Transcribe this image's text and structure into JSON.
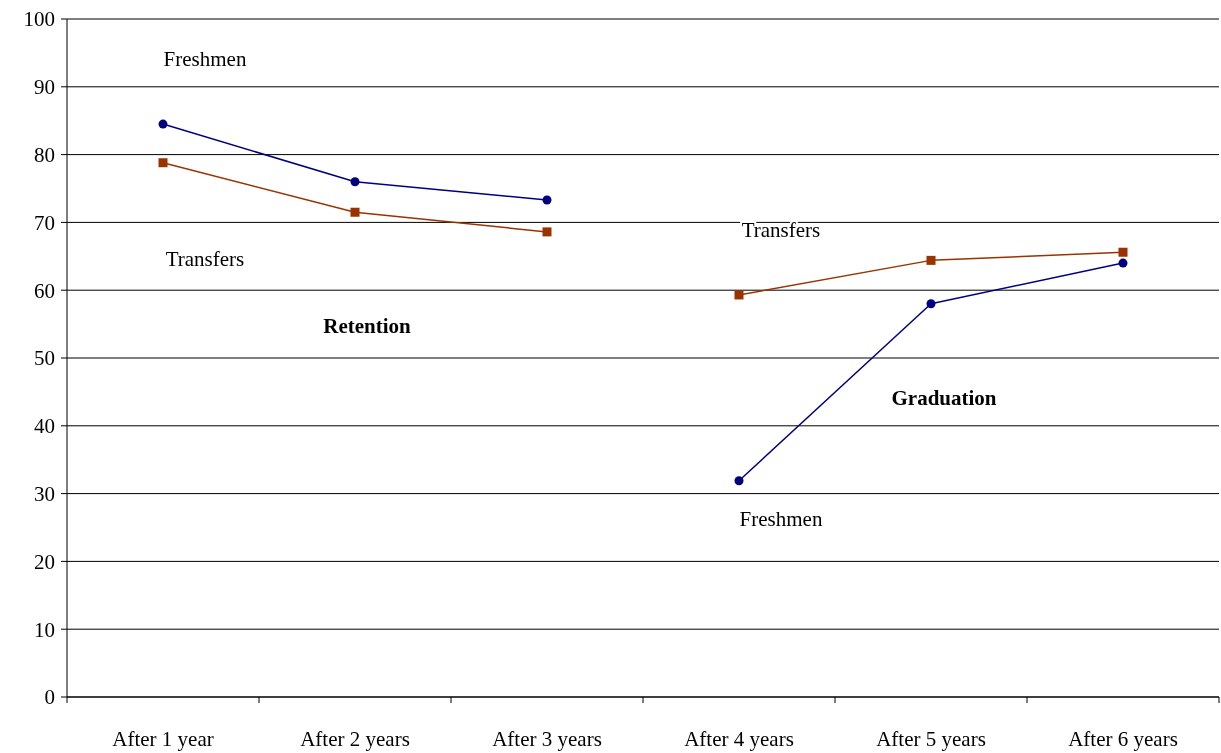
{
  "chart_data": {
    "type": "line",
    "categories": [
      "After 1 year",
      "After 2 years",
      "After 3 years",
      "After 4 years",
      "After 5 years",
      "After 6 years"
    ],
    "series": [
      {
        "name": "Freshmen",
        "color": "#000080",
        "marker": "circle",
        "values": [
          84.5,
          76,
          73.3,
          null,
          null,
          null
        ]
      },
      {
        "name": "Transfers",
        "color": "#993300",
        "marker": "square",
        "values": [
          78.8,
          71.5,
          68.6,
          null,
          null,
          null
        ]
      },
      {
        "name": "Transfers",
        "color": "#993300",
        "marker": "square",
        "values": [
          null,
          null,
          null,
          59.3,
          64.4,
          65.6
        ]
      },
      {
        "name": "Freshmen",
        "color": "#000080",
        "marker": "circle",
        "values": [
          null,
          null,
          null,
          31.9,
          58,
          64
        ]
      }
    ],
    "annotations": [
      "Retention",
      "Graduation"
    ],
    "ylim": [
      0,
      100
    ],
    "yticks": [
      0,
      10,
      20,
      30,
      40,
      50,
      60,
      70,
      80,
      90,
      100
    ],
    "grid": "y"
  }
}
